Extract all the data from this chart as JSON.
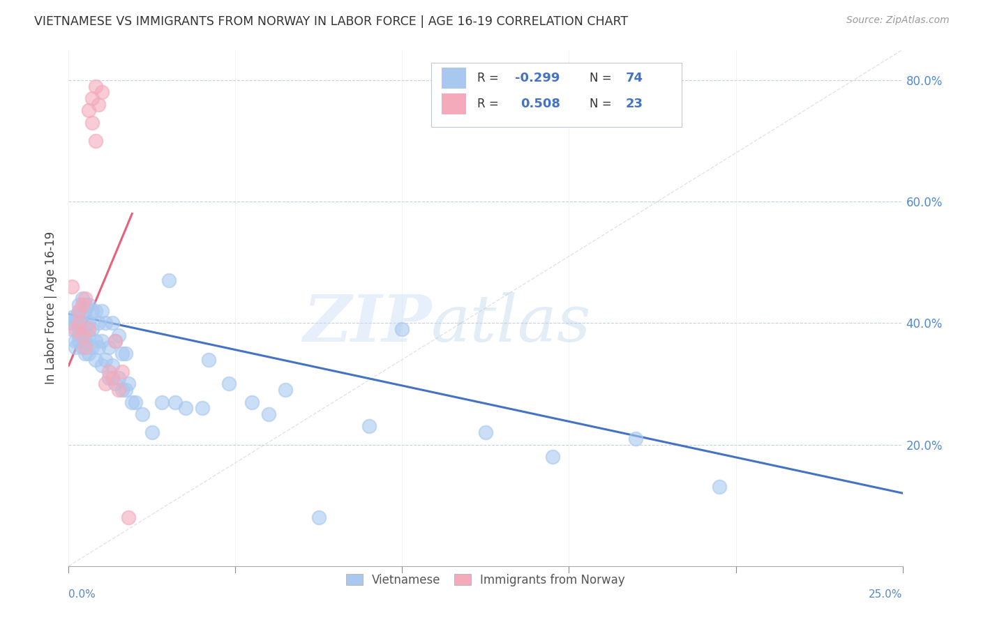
{
  "title": "VIETNAMESE VS IMMIGRANTS FROM NORWAY IN LABOR FORCE | AGE 16-19 CORRELATION CHART",
  "source": "Source: ZipAtlas.com",
  "ylabel": "In Labor Force | Age 16-19",
  "xlim": [
    0.0,
    0.25
  ],
  "ylim": [
    0.0,
    0.85
  ],
  "xticks": [
    0.0,
    0.05,
    0.1,
    0.15,
    0.2,
    0.25
  ],
  "yticks": [
    0.0,
    0.2,
    0.4,
    0.6,
    0.8
  ],
  "xlabels_left": "0.0%",
  "xlabels_right": "25.0%",
  "ytick_labels_right": [
    "",
    "20.0%",
    "40.0%",
    "60.0%",
    "80.0%"
  ],
  "blue_color": "#A8C8F0",
  "pink_color": "#F4AABB",
  "blue_line_color": "#4472C4",
  "pink_line_color": "#E8607A",
  "diag_line_color": "#C8C8C8",
  "legend_r_blue": "-0.299",
  "legend_n_blue": "74",
  "legend_r_pink": "0.508",
  "legend_n_pink": "23",
  "legend_label_blue": "Vietnamese",
  "legend_label_pink": "Immigrants from Norway",
  "blue_scatter_x": [
    0.001,
    0.001,
    0.001,
    0.002,
    0.002,
    0.002,
    0.002,
    0.003,
    0.003,
    0.003,
    0.003,
    0.003,
    0.003,
    0.004,
    0.004,
    0.004,
    0.004,
    0.004,
    0.005,
    0.005,
    0.005,
    0.005,
    0.005,
    0.006,
    0.006,
    0.006,
    0.006,
    0.007,
    0.007,
    0.007,
    0.008,
    0.008,
    0.008,
    0.009,
    0.009,
    0.01,
    0.01,
    0.01,
    0.011,
    0.011,
    0.012,
    0.012,
    0.013,
    0.013,
    0.014,
    0.014,
    0.015,
    0.015,
    0.016,
    0.016,
    0.017,
    0.017,
    0.018,
    0.019,
    0.02,
    0.022,
    0.025,
    0.028,
    0.03,
    0.032,
    0.035,
    0.04,
    0.042,
    0.048,
    0.055,
    0.06,
    0.065,
    0.075,
    0.09,
    0.1,
    0.125,
    0.145,
    0.17,
    0.195
  ],
  "blue_scatter_y": [
    0.39,
    0.4,
    0.41,
    0.36,
    0.37,
    0.4,
    0.41,
    0.37,
    0.38,
    0.39,
    0.4,
    0.42,
    0.43,
    0.36,
    0.38,
    0.4,
    0.42,
    0.44,
    0.35,
    0.37,
    0.39,
    0.41,
    0.43,
    0.35,
    0.38,
    0.4,
    0.43,
    0.36,
    0.39,
    0.42,
    0.34,
    0.37,
    0.42,
    0.36,
    0.4,
    0.33,
    0.37,
    0.42,
    0.34,
    0.4,
    0.31,
    0.36,
    0.33,
    0.4,
    0.3,
    0.37,
    0.31,
    0.38,
    0.29,
    0.35,
    0.29,
    0.35,
    0.3,
    0.27,
    0.27,
    0.25,
    0.22,
    0.27,
    0.47,
    0.27,
    0.26,
    0.26,
    0.34,
    0.3,
    0.27,
    0.25,
    0.29,
    0.08,
    0.23,
    0.39,
    0.22,
    0.18,
    0.21,
    0.13
  ],
  "pink_scatter_x": [
    0.001,
    0.002,
    0.003,
    0.003,
    0.004,
    0.004,
    0.005,
    0.005,
    0.006,
    0.006,
    0.007,
    0.007,
    0.008,
    0.008,
    0.009,
    0.01,
    0.011,
    0.012,
    0.013,
    0.014,
    0.015,
    0.016,
    0.018
  ],
  "pink_scatter_y": [
    0.46,
    0.39,
    0.4,
    0.42,
    0.38,
    0.43,
    0.36,
    0.44,
    0.39,
    0.75,
    0.73,
    0.77,
    0.7,
    0.79,
    0.76,
    0.78,
    0.3,
    0.32,
    0.31,
    0.37,
    0.29,
    0.32,
    0.08
  ],
  "blue_trend_x": [
    0.0,
    0.25
  ],
  "blue_trend_y": [
    0.415,
    0.12
  ],
  "pink_trend_x": [
    0.0,
    0.019
  ],
  "pink_trend_y": [
    0.33,
    0.58
  ],
  "diag_trend_x": [
    0.0,
    0.25
  ],
  "diag_trend_y": [
    0.0,
    0.85
  ]
}
